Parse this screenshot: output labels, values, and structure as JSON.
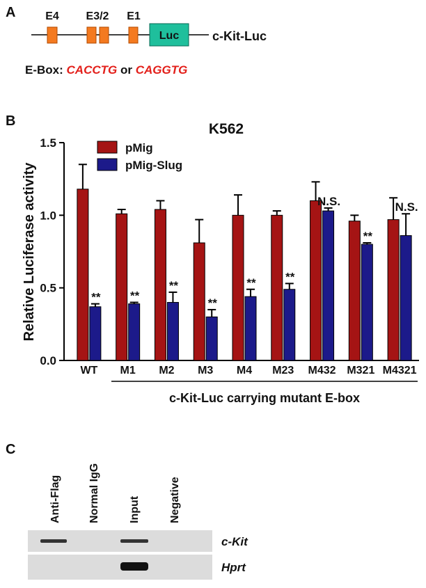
{
  "panel_a": {
    "label": "A",
    "exons": [
      "E4",
      "E3/2",
      "E1"
    ],
    "reporter": "Luc",
    "construct": "c-Kit-Luc",
    "ebox_label": "E-Box:",
    "ebox_seq1": "CACCTG",
    "ebox_or": "or",
    "ebox_seq2": "CAGGTG"
  },
  "chart_data": {
    "type": "bar",
    "panel_label": "B",
    "title": "K562",
    "ylabel": "Relative Luciferase activity",
    "xlabel": "c-Kit-Luc carrying mutant E-box",
    "categories": [
      "WT",
      "M1",
      "M2",
      "M3",
      "M4",
      "M23",
      "M432",
      "M321",
      "M4321"
    ],
    "series": [
      {
        "name": "pMig",
        "color": "#a51414",
        "values": [
          1.18,
          1.01,
          1.04,
          0.81,
          1.0,
          1.0,
          1.1,
          0.96,
          0.97
        ],
        "errors": [
          0.17,
          0.03,
          0.06,
          0.16,
          0.14,
          0.03,
          0.13,
          0.04,
          0.15
        ]
      },
      {
        "name": "pMig-Slug",
        "color": "#1c1a8a",
        "values": [
          0.37,
          0.39,
          0.4,
          0.3,
          0.44,
          0.49,
          1.03,
          0.8,
          0.86
        ],
        "errors": [
          0.02,
          0.01,
          0.07,
          0.05,
          0.05,
          0.04,
          0.02,
          0.01,
          0.15
        ]
      }
    ],
    "significance": [
      "**",
      "**",
      "**",
      "**",
      "**",
      "**",
      "N.S.",
      "**",
      "N.S."
    ],
    "ylim": [
      0,
      1.5
    ],
    "yticks": [
      {
        "value": 0,
        "label": "0.0"
      },
      0.5,
      {
        "value": 1,
        "label": "1.0"
      },
      1.5
    ]
  },
  "panel_c": {
    "label": "C",
    "lanes": [
      "Anti-Flag",
      "Normal IgG",
      "Input",
      "Negative"
    ],
    "genes": [
      "c-Kit",
      "Hprt"
    ]
  }
}
